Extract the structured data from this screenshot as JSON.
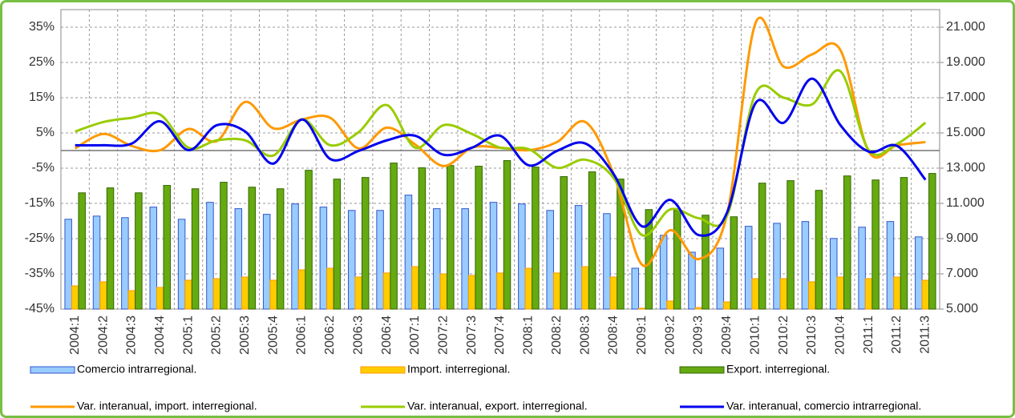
{
  "chart_data": {
    "type": "bar",
    "categories": [
      "2004:1",
      "2004:2",
      "2004:3",
      "2004:4",
      "2005:1",
      "2005:2",
      "2005:3",
      "2005:4",
      "2006:1",
      "2006:2",
      "2006:3",
      "2006:4",
      "2007:1",
      "2007:2",
      "2007:3",
      "2007:4",
      "2008:1",
      "2008:2",
      "2008:3",
      "2008:4",
      "2009:1",
      "2009:2",
      "2009:3",
      "2009:4",
      "2010:1",
      "2010:2",
      "2010:3",
      "2010:4",
      "2011:1",
      "2011:2",
      "2011:3"
    ],
    "series": [
      {
        "name": "Comercio intrarregional.",
        "type": "bar",
        "axis": "y2",
        "color": "#99ccff",
        "edge": "#3355cc",
        "values": [
          10100,
          10280,
          10190,
          10790,
          10100,
          11060,
          10700,
          10380,
          10970,
          10790,
          10600,
          10600,
          11470,
          10700,
          10700,
          11060,
          10970,
          10600,
          10880,
          10420,
          7320,
          9190,
          8230,
          8460,
          9700,
          9870,
          9970,
          9010,
          9650,
          9970,
          9100
        ]
      },
      {
        "name": "Import. interregional.",
        "type": "bar",
        "axis": "y2",
        "color": "#ffcc00",
        "edge": "#ff9900",
        "values": [
          6320,
          6550,
          6050,
          6230,
          6640,
          6730,
          6820,
          6640,
          7230,
          7320,
          6820,
          7050,
          7410,
          7000,
          6910,
          7050,
          7320,
          7050,
          7410,
          6820,
          5050,
          5460,
          5090,
          5410,
          6730,
          6730,
          6550,
          6820,
          6730,
          6820,
          6640
        ]
      },
      {
        "name": "Export. interregional.",
        "type": "bar",
        "axis": "y2",
        "color": "#66aa11",
        "edge": "#336600",
        "values": [
          11600,
          11880,
          11600,
          12020,
          11830,
          12200,
          11920,
          11830,
          12880,
          12380,
          12470,
          13290,
          13020,
          13150,
          13110,
          13430,
          13060,
          12520,
          12790,
          12380,
          10650,
          10600,
          10330,
          10240,
          12150,
          12290,
          11740,
          12560,
          12330,
          12470,
          12700
        ]
      },
      {
        "name": "Var. interanual, import. interregional.",
        "type": "line",
        "color": "#ff9900",
        "values": [
          0.6,
          4.7,
          1.3,
          0.1,
          6.1,
          2.7,
          13.8,
          6.3,
          8.8,
          9.3,
          0.6,
          6.5,
          1.7,
          -4.4,
          0.8,
          0.8,
          0.1,
          2.4,
          8.1,
          -6.7,
          -32.4,
          -22.6,
          -30.8,
          -18.1,
          36.1,
          23.8,
          27.3,
          28.5,
          -0.3,
          1.5,
          2.4
        ]
      },
      {
        "name": "Var. interanual, export. interregional.",
        "type": "line",
        "color": "#99cc00",
        "values": [
          5.4,
          8.1,
          9.3,
          10.2,
          0.8,
          2.9,
          2.9,
          -1.4,
          8.8,
          1.5,
          5.2,
          12.9,
          0.8,
          7.2,
          4.7,
          0.8,
          0.4,
          -4.9,
          -2.6,
          -7.8,
          -24,
          -16.7,
          -19.2,
          -18.5,
          16.1,
          15,
          13.1,
          22.5,
          0.1,
          1.9,
          7.9
        ]
      },
      {
        "name": "Var. interanual, comercio intrarregional.",
        "type": "line",
        "color": "#0000ee",
        "values": [
          1.5,
          1.5,
          2.0,
          8.3,
          0.1,
          7.2,
          5.4,
          -3.7,
          8.8,
          -2.4,
          -0.1,
          2.9,
          4.2,
          -1.2,
          0.8,
          4.2,
          -4.2,
          -0.1,
          2.0,
          -6.7,
          -21.5,
          -14,
          -24,
          -17.6,
          13.4,
          7.9,
          20.4,
          7.2,
          -0.3,
          1.3,
          -8.3
        ]
      }
    ],
    "ylim": [
      -45,
      40
    ],
    "yticks": [
      {
        "value": 35,
        "label": "35%"
      },
      {
        "value": 25,
        "label": "25%"
      },
      {
        "value": 15,
        "label": "15%"
      },
      {
        "value": 5,
        "label": "5%"
      },
      {
        "value": -5,
        "label": "-5%"
      },
      {
        "value": -15,
        "label": "-15%"
      },
      {
        "value": -25,
        "label": "-25%"
      },
      {
        "value": -35,
        "label": "-35%"
      },
      {
        "value": -45,
        "label": "-45%"
      }
    ],
    "y2lim": [
      5000,
      22000
    ],
    "y2ticks": [
      {
        "value": 21000,
        "label": "21.000"
      },
      {
        "value": 19000,
        "label": "19.000"
      },
      {
        "value": 17000,
        "label": "17.000"
      },
      {
        "value": 15000,
        "label": "15.000"
      },
      {
        "value": 13000,
        "label": "13.000"
      },
      {
        "value": 11000,
        "label": "11.000"
      },
      {
        "value": 9000,
        "label": "9.000"
      },
      {
        "value": 7000,
        "label": "7.000"
      },
      {
        "value": 5000,
        "label": "5.000"
      }
    ],
    "grid": true
  }
}
